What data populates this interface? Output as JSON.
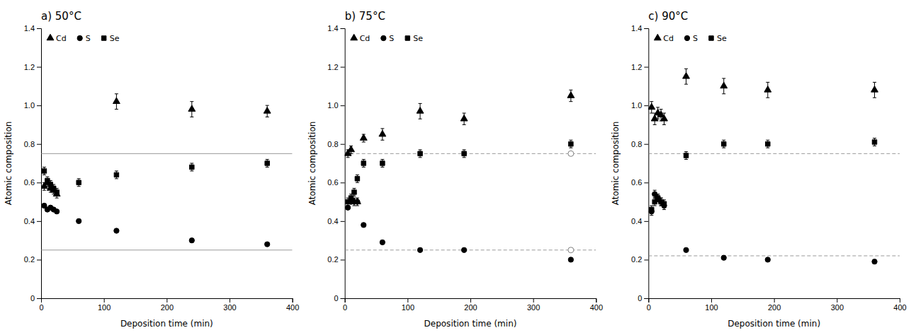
{
  "chart_data": [
    {
      "type": "scatter",
      "title": "a) 50°C",
      "xlabel": "Deposition time (min)",
      "ylabel": "Atomic composition",
      "xlim": [
        0,
        400
      ],
      "ylim": [
        0,
        1.4
      ],
      "xticks": [
        0,
        100,
        200,
        300,
        400
      ],
      "yticks": [
        0,
        0.2,
        0.4,
        0.6,
        0.8,
        {
          "value": 1.0,
          "label": "1.0"
        },
        1.2,
        1.4
      ],
      "grid": false,
      "legend": "upper left",
      "hlines": [
        0.75,
        0.25
      ],
      "line_style": "solid",
      "series": [
        {
          "name": "Cd",
          "marker": "triangle",
          "color": "black",
          "x": [
            5,
            10,
            15,
            20,
            25,
            120,
            240,
            360
          ],
          "values": [
            0.58,
            0.6,
            0.57,
            0.56,
            0.54,
            1.02,
            0.98,
            0.97
          ],
          "error": [
            0.02,
            0.02,
            0.02,
            0.02,
            0.02,
            0.04,
            0.04,
            0.03
          ]
        },
        {
          "name": "S",
          "marker": "circle",
          "color": "black",
          "x": [
            5,
            10,
            15,
            20,
            25,
            60,
            120,
            240,
            360
          ],
          "values": [
            0.48,
            0.46,
            0.47,
            0.46,
            0.45,
            0.4,
            0.35,
            0.3,
            0.28
          ],
          "error": [
            0.01,
            0.01,
            0.01,
            0.01,
            0.01,
            0.01,
            0.01,
            0.01,
            0.01
          ]
        },
        {
          "name": "Se",
          "marker": "square",
          "color": "black",
          "x": [
            5,
            10,
            15,
            20,
            25,
            60,
            120,
            240,
            360
          ],
          "values": [
            0.66,
            0.61,
            0.59,
            0.57,
            0.55,
            0.6,
            0.64,
            0.68,
            0.7
          ],
          "error": [
            0.02,
            0.02,
            0.02,
            0.02,
            0.02,
            0.02,
            0.02,
            0.02,
            0.02
          ]
        }
      ]
    },
    {
      "type": "scatter",
      "title": "b) 75°C",
      "xlabel": "Deposition time (min)",
      "ylabel": "Atomic composition",
      "xlim": [
        0,
        400
      ],
      "ylim": [
        0,
        1.4
      ],
      "xticks": [
        0,
        100,
        200,
        300,
        400
      ],
      "yticks": [
        0,
        0.2,
        0.4,
        0.6,
        0.8,
        {
          "value": 1.0,
          "label": "1.0"
        },
        1.2,
        1.4
      ],
      "grid": false,
      "legend": "upper left",
      "hlines": [
        0.75,
        0.25
      ],
      "line_style": "dashed",
      "reference_marker_x": 360,
      "series": [
        {
          "name": "Cd",
          "marker": "triangle",
          "color": "black",
          "x": [
            5,
            10,
            15,
            20,
            30,
            60,
            120,
            190,
            360
          ],
          "values": [
            0.75,
            0.77,
            0.5,
            0.5,
            0.83,
            0.85,
            0.97,
            0.93,
            1.05
          ],
          "error": [
            0.02,
            0.02,
            0.02,
            0.02,
            0.02,
            0.03,
            0.04,
            0.03,
            0.03
          ]
        },
        {
          "name": "S",
          "marker": "circle",
          "color": "black",
          "x": [
            5,
            10,
            15,
            20,
            30,
            60,
            120,
            190,
            360
          ],
          "values": [
            0.47,
            0.5,
            0.5,
            0.5,
            0.38,
            0.29,
            0.25,
            0.25,
            0.2
          ],
          "error": [
            0.01,
            0.01,
            0.01,
            0.01,
            0.01,
            0.01,
            0.01,
            0.01,
            0.01
          ]
        },
        {
          "name": "Se",
          "marker": "square",
          "color": "black",
          "x": [
            5,
            10,
            15,
            20,
            30,
            60,
            120,
            190,
            360
          ],
          "values": [
            0.5,
            0.52,
            0.55,
            0.62,
            0.7,
            0.7,
            0.75,
            0.75,
            0.8
          ],
          "error": [
            0.02,
            0.02,
            0.02,
            0.02,
            0.02,
            0.02,
            0.02,
            0.02,
            0.02
          ]
        }
      ]
    },
    {
      "type": "scatter",
      "title": "c) 90°C",
      "xlabel": "Deposition time (min)",
      "ylabel": "Atomic composition",
      "xlim": [
        0,
        400
      ],
      "ylim": [
        0,
        1.4
      ],
      "xticks": [
        0,
        100,
        200,
        300,
        400
      ],
      "yticks": [
        0,
        0.2,
        0.4,
        0.6,
        0.8,
        {
          "value": 1.0,
          "label": "1.0"
        },
        1.2,
        1.4
      ],
      "grid": false,
      "legend": "upper left",
      "hlines": [
        0.75,
        0.22
      ],
      "line_style": "dashed",
      "series": [
        {
          "name": "Cd",
          "marker": "triangle",
          "color": "black",
          "x": [
            5,
            10,
            15,
            20,
            25,
            60,
            120,
            190,
            360
          ],
          "values": [
            0.99,
            0.93,
            0.96,
            0.95,
            0.93,
            1.15,
            1.1,
            1.08,
            1.08
          ],
          "error": [
            0.03,
            0.03,
            0.03,
            0.03,
            0.03,
            0.04,
            0.04,
            0.04,
            0.04
          ]
        },
        {
          "name": "S",
          "marker": "circle",
          "color": "black",
          "x": [
            5,
            10,
            15,
            20,
            25,
            60,
            120,
            190,
            360
          ],
          "values": [
            0.45,
            0.54,
            0.52,
            0.5,
            0.48,
            0.25,
            0.21,
            0.2,
            0.19
          ],
          "error": [
            0.02,
            0.02,
            0.02,
            0.02,
            0.02,
            0.01,
            0.01,
            0.01,
            0.01
          ]
        },
        {
          "name": "Se",
          "marker": "square",
          "color": "black",
          "x": [
            5,
            10,
            15,
            20,
            25,
            60,
            120,
            190,
            360
          ],
          "values": [
            0.46,
            0.5,
            0.52,
            0.5,
            0.49,
            0.74,
            0.8,
            0.8,
            0.81
          ],
          "error": [
            0.02,
            0.02,
            0.02,
            0.02,
            0.02,
            0.02,
            0.02,
            0.02,
            0.02
          ]
        }
      ]
    }
  ]
}
